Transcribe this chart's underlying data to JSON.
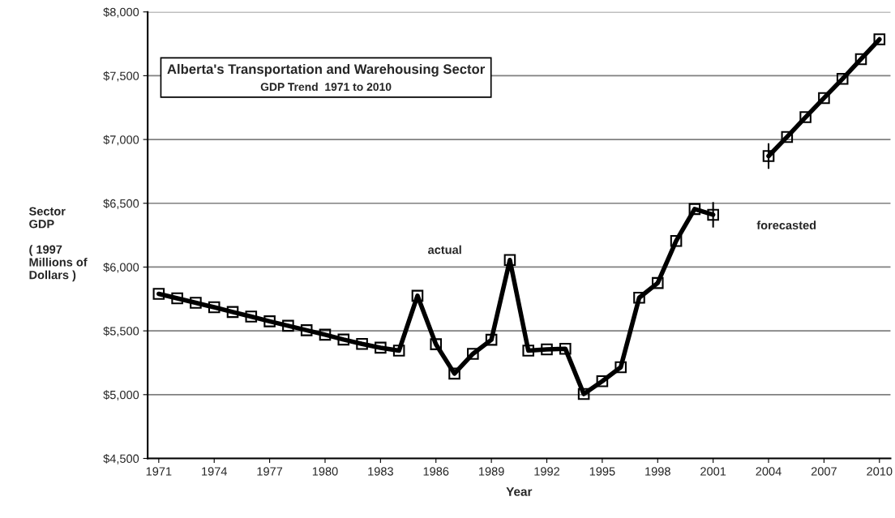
{
  "chart_data": {
    "type": "line",
    "title": "Alberta's Transportation and Warehousing Sector",
    "subtitle": "GDP Trend  1971 to 2010",
    "xlabel": "Year",
    "ylabel": "Sector\nGDP\n\n( 1997\nMillions of\nDollars )",
    "x": [
      1971,
      1972,
      1973,
      1974,
      1975,
      1976,
      1977,
      1978,
      1979,
      1980,
      1981,
      1982,
      1983,
      1984,
      1985,
      1986,
      1987,
      1988,
      1989,
      1990,
      1991,
      1992,
      1993,
      1994,
      1995,
      1996,
      1997,
      1998,
      1999,
      2000,
      2001,
      2002,
      2003,
      2004,
      2005,
      2006,
      2007,
      2008,
      2009,
      2010
    ],
    "series": [
      {
        "color": "#000000",
        "values": [
          5790,
          5755,
          5720,
          5685,
          5648,
          5612,
          5575,
          5540,
          5505,
          5470,
          5432,
          5398,
          5368,
          5345,
          5775,
          5395,
          5165,
          5320,
          5430,
          6055,
          5345,
          5355,
          5360,
          5005,
          5105,
          5215,
          5760,
          5875,
          6205,
          6455,
          6410,
          null,
          null,
          6870,
          7020,
          7175,
          7325,
          7475,
          7630,
          7785
        ],
        "errors": [
          null,
          null,
          null,
          null,
          null,
          null,
          null,
          null,
          null,
          null,
          null,
          null,
          null,
          null,
          null,
          null,
          null,
          null,
          null,
          null,
          null,
          null,
          null,
          null,
          null,
          null,
          null,
          null,
          null,
          null,
          100,
          null,
          null,
          100,
          null,
          null,
          null,
          null,
          null,
          null
        ]
      }
    ],
    "annotations": [
      "actual",
      "forecasted"
    ],
    "xlim": [
      1970.4,
      2010.6
    ],
    "xticks": [
      1971,
      1974,
      1977,
      1980,
      1983,
      1986,
      1989,
      1992,
      1995,
      1998,
      2001,
      2004,
      2007,
      2010
    ],
    "ylim": [
      4500,
      8000
    ],
    "yticks": [
      {
        "value": 4500,
        "label": "$4,500"
      },
      {
        "value": 5000,
        "label": "$5,000"
      },
      {
        "value": 5500,
        "label": "$5,500"
      },
      {
        "value": 6000,
        "label": "$6,000"
      },
      {
        "value": 6500,
        "label": "$6,500"
      },
      {
        "value": 7000,
        "label": "$7,000"
      },
      {
        "value": 7500,
        "label": "$7,500"
      },
      {
        "value": 8000,
        "label": "$8,000"
      }
    ],
    "grid": "y",
    "marker": "square",
    "line_style": "solid"
  }
}
